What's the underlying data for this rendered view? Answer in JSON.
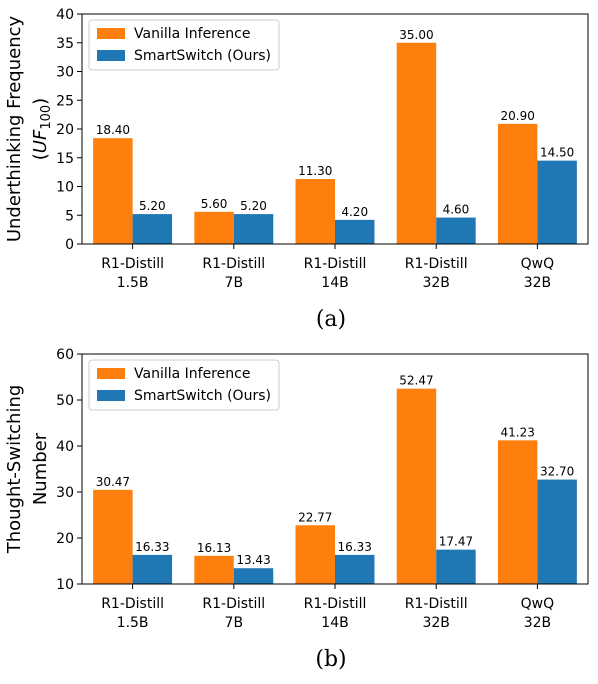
{
  "colors": {
    "vanilla": "#ff7f0e",
    "smartswitch": "#1f77b4"
  },
  "chart_data": [
    {
      "type": "bar",
      "caption": "(a)",
      "ylabel_lines": [
        "Underthinking Frequency",
        "(UF100)"
      ],
      "ylim": [
        0,
        40
      ],
      "yticks": [
        0,
        5,
        10,
        15,
        20,
        25,
        30,
        35,
        40
      ],
      "categories": [
        "R1-Distill\n1.5B",
        "R1-Distill\n7B",
        "R1-Distill\n14B",
        "R1-Distill\n32B",
        "QwQ\n32B"
      ],
      "series": [
        {
          "name": "Vanilla Inference",
          "values": [
            18.4,
            5.6,
            11.3,
            35.0,
            20.9
          ],
          "labels": [
            "18.40",
            "5.60",
            "11.30",
            "35.00",
            "20.90"
          ]
        },
        {
          "name": "SmartSwitch (Ours)",
          "values": [
            5.2,
            5.2,
            4.2,
            4.6,
            14.5
          ],
          "labels": [
            "5.20",
            "5.20",
            "4.20",
            "4.60",
            "14.50"
          ]
        }
      ],
      "legend": "top-left",
      "grid": false
    },
    {
      "type": "bar",
      "caption": "(b)",
      "ylabel_lines": [
        "Thought-Switching",
        "Number"
      ],
      "ylim": [
        10,
        60
      ],
      "yticks": [
        10,
        20,
        30,
        40,
        50,
        60
      ],
      "categories": [
        "R1-Distill\n1.5B",
        "R1-Distill\n7B",
        "R1-Distill\n14B",
        "R1-Distill\n32B",
        "QwQ\n32B"
      ],
      "series": [
        {
          "name": "Vanilla Inference",
          "values": [
            30.47,
            16.13,
            22.77,
            52.47,
            41.23
          ],
          "labels": [
            "30.47",
            "16.13",
            "22.77",
            "52.47",
            "41.23"
          ]
        },
        {
          "name": "SmartSwitch (Ours)",
          "values": [
            16.33,
            13.43,
            16.33,
            17.47,
            32.7
          ],
          "labels": [
            "16.33",
            "13.43",
            "16.33",
            "17.47",
            "32.70"
          ]
        }
      ],
      "legend": "top-left",
      "grid": false
    }
  ]
}
